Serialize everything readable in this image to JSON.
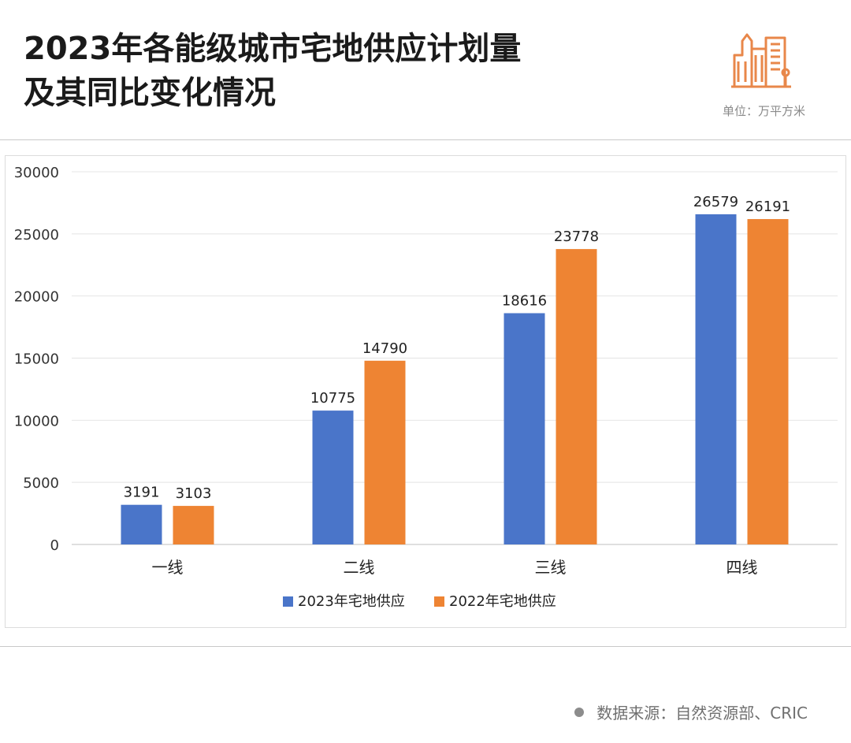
{
  "header": {
    "title_line1": "2023年各能级城市宅地供应计划量",
    "title_line2": "及其同比变化情况",
    "unit": "单位：万平方米"
  },
  "footer": {
    "source": "数据来源：自然资源部、CRIC"
  },
  "colors": {
    "series_2023": "#4a75c9",
    "series_2022": "#ee8433",
    "building_icon": "#e8874a"
  },
  "chart_data": {
    "type": "bar",
    "title": "",
    "xlabel": "",
    "ylabel": "",
    "categories": [
      "一线",
      "二线",
      "三线",
      "四线"
    ],
    "series": [
      {
        "name": "2023年宅地供应",
        "values": [
          3191,
          10775,
          18616,
          26579
        ]
      },
      {
        "name": "2022年宅地供应",
        "values": [
          3103,
          14790,
          23778,
          26191
        ]
      }
    ],
    "ylim": [
      0,
      30000
    ],
    "yticks": [
      0,
      5000,
      10000,
      15000,
      20000,
      25000,
      30000
    ],
    "grid": true,
    "legend": "bottom-center",
    "data_labels": true
  }
}
